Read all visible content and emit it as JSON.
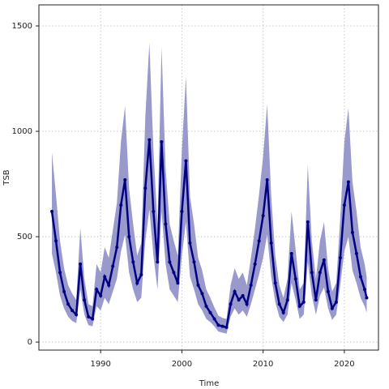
{
  "chart_data": {
    "type": "line",
    "x_label": "Time",
    "y_label": "TSB",
    "x": [
      1984,
      1984.5,
      1985,
      1985.5,
      1986,
      1986.5,
      1987,
      1987.5,
      1988,
      1988.5,
      1989,
      1989.5,
      1990,
      1990.5,
      1991,
      1991.5,
      1992,
      1992.5,
      1993,
      1993.5,
      1994,
      1994.5,
      1995,
      1995.5,
      1996,
      1996.5,
      1997,
      1997.5,
      1998,
      1998.5,
      1999,
      1999.5,
      2000,
      2000.5,
      2001,
      2001.5,
      2002,
      2002.5,
      2003,
      2003.5,
      2004,
      2004.5,
      2005,
      2005.5,
      2006,
      2006.5,
      2007,
      2007.5,
      2008,
      2008.5,
      2009,
      2009.5,
      2010,
      2010.5,
      2011,
      2011.5,
      2012,
      2012.5,
      2013,
      2013.5,
      2014,
      2014.5,
      2015,
      2015.5,
      2016,
      2016.5,
      2017,
      2017.5,
      2018,
      2018.5,
      2019,
      2019.5,
      2020,
      2020.5,
      2021,
      2021.5,
      2022,
      2022.5,
      2022.75
    ],
    "values": [
      620,
      480,
      330,
      240,
      180,
      150,
      130,
      370,
      200,
      120,
      110,
      250,
      220,
      310,
      270,
      360,
      450,
      650,
      770,
      500,
      380,
      280,
      320,
      730,
      960,
      620,
      380,
      950,
      560,
      380,
      330,
      280,
      620,
      860,
      470,
      380,
      270,
      230,
      170,
      140,
      110,
      80,
      75,
      70,
      180,
      240,
      200,
      220,
      180,
      270,
      370,
      480,
      600,
      770,
      470,
      280,
      180,
      140,
      200,
      420,
      300,
      170,
      190,
      570,
      330,
      200,
      330,
      390,
      240,
      160,
      190,
      400,
      650,
      760,
      520,
      420,
      310,
      250,
      210
    ],
    "lower": [
      420,
      330,
      220,
      160,
      120,
      100,
      90,
      250,
      130,
      80,
      75,
      170,
      150,
      210,
      180,
      240,
      300,
      430,
      510,
      330,
      250,
      190,
      210,
      480,
      630,
      410,
      250,
      620,
      370,
      250,
      220,
      190,
      410,
      570,
      310,
      250,
      180,
      150,
      110,
      95,
      75,
      50,
      45,
      40,
      120,
      160,
      130,
      150,
      120,
      180,
      250,
      320,
      400,
      510,
      310,
      190,
      120,
      95,
      130,
      280,
      200,
      110,
      130,
      380,
      220,
      130,
      220,
      260,
      160,
      105,
      130,
      270,
      430,
      500,
      340,
      280,
      210,
      170,
      140
    ],
    "upper": [
      900,
      700,
      480,
      350,
      270,
      230,
      200,
      540,
      300,
      180,
      170,
      370,
      330,
      450,
      400,
      530,
      660,
      950,
      1120,
      730,
      560,
      410,
      470,
      1070,
      1420,
      910,
      560,
      1400,
      820,
      560,
      480,
      410,
      910,
      1260,
      690,
      560,
      400,
      340,
      250,
      210,
      165,
      125,
      115,
      110,
      270,
      350,
      300,
      330,
      270,
      400,
      540,
      700,
      880,
      1130,
      690,
      410,
      270,
      210,
      300,
      620,
      440,
      250,
      280,
      840,
      480,
      300,
      480,
      570,
      350,
      240,
      280,
      590,
      950,
      1110,
      760,
      620,
      450,
      370,
      310
    ],
    "color": "#000080",
    "band_color": "#9999cc",
    "xlim": [
      1982.4,
      2024.2
    ],
    "ylim": [
      -38,
      1600
    ],
    "xticks": [
      1990,
      2000,
      2010,
      2020
    ],
    "yticks": [
      0,
      500,
      1000,
      1500
    ],
    "grid": true
  }
}
